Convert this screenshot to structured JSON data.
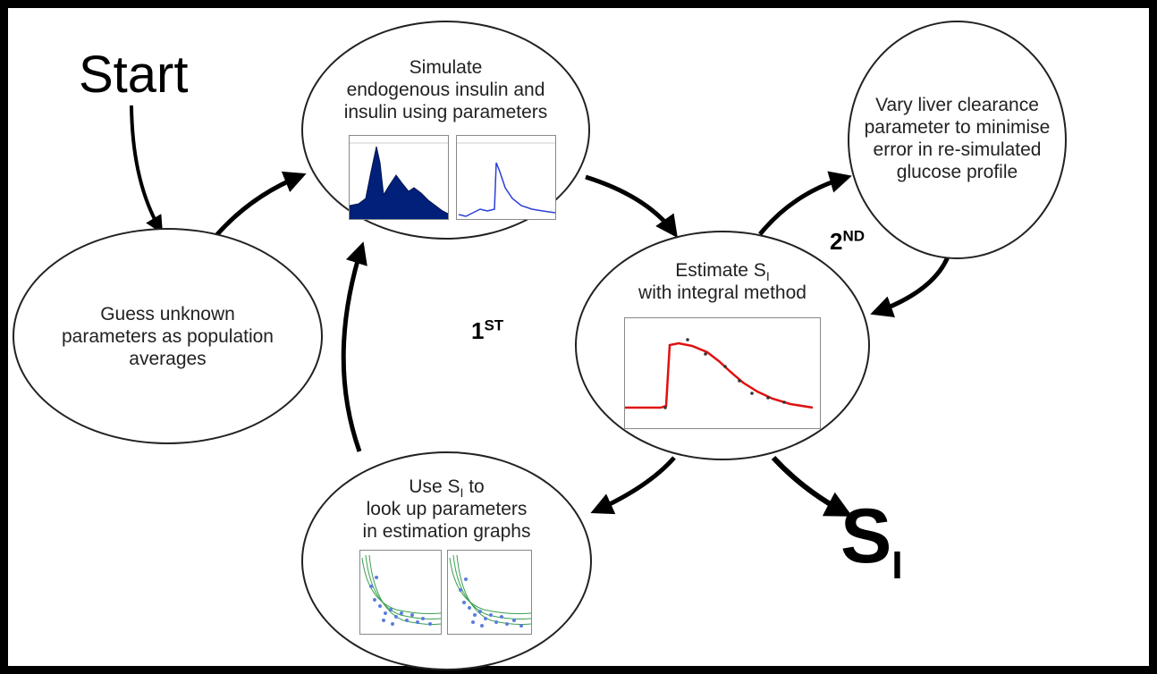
{
  "start_label": "Start",
  "result": {
    "main": "S",
    "sub": "I"
  },
  "loop_1": {
    "main": "1",
    "sup": "ST"
  },
  "loop_2": {
    "main": "2",
    "sup": "ND"
  },
  "nodes": {
    "guess": {
      "lines": [
        "Guess unknown",
        "parameters as population",
        "averages"
      ]
    },
    "simulate": {
      "lines": [
        "Simulate",
        "endogenous insulin and",
        "insulin using parameters"
      ]
    },
    "vary": {
      "lines": [
        "Vary liver clearance",
        "parameter to minimise",
        "error in re-simulated",
        "glucose profile"
      ]
    },
    "estimate": {
      "line1_prefix": "Estimate S",
      "line1_sub": "I",
      "line2": "with integral method"
    },
    "lookup": {
      "line1_prefix": "Use S",
      "line1_sub": "I",
      "line1_suffix": " to",
      "line2": "look up parameters",
      "line3": "in estimation graphs"
    }
  },
  "colors": {
    "navy": "#00207a",
    "blue": "#2a3fd8",
    "red": "#e01010",
    "green": "#3aa050",
    "points": "#5a7ee0"
  }
}
